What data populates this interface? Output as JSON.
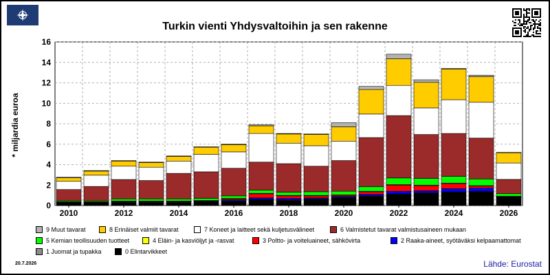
{
  "header": {
    "logo_icon": "compass-rose-icon",
    "qr_icon": "qr-code-icon"
  },
  "footer": {
    "date": "20.7.2026",
    "source": "Lähde: Eurostat"
  },
  "chart_data": {
    "type": "bar",
    "stacked": true,
    "title": "Turkin vienti Yhdysvaltoihin ja sen rakenne",
    "ylabel": "* miljardia euroa",
    "xlabel": "",
    "ylim": [
      0,
      16
    ],
    "yticks": [
      "0",
      "2",
      "4",
      "6",
      "8",
      "10",
      "12",
      "14",
      "16"
    ],
    "xtick_labels": [
      "2010",
      "2012",
      "2014",
      "2016",
      "2018",
      "2020",
      "2022",
      "2024",
      "2026"
    ],
    "grid": true,
    "legend_position": "bottom",
    "categories": [
      "2010",
      "2011",
      "2012",
      "2013",
      "2014",
      "2015",
      "2016",
      "2017",
      "2018",
      "2019",
      "2020",
      "2021",
      "2022",
      "2023",
      "2024",
      "2025",
      "2026"
    ],
    "series": [
      {
        "name": "0 Elintarvikkeet",
        "color": "#000000",
        "values": [
          0.25,
          0.25,
          0.3,
          0.3,
          0.3,
          0.35,
          0.4,
          0.55,
          0.5,
          0.6,
          0.75,
          0.9,
          1.1,
          1.2,
          1.3,
          1.35,
          0.8
        ]
      },
      {
        "name": "1 Juomat ja tupakka",
        "color": "#8c8c8c",
        "values": [
          0.05,
          0.05,
          0.05,
          0.05,
          0.05,
          0.05,
          0.05,
          0.05,
          0.05,
          0.05,
          0.05,
          0.05,
          0.05,
          0.05,
          0.05,
          0.05,
          0.02
        ]
      },
      {
        "name": "2 Raaka-aineet, syötäväksi kelpaamattomat",
        "color": "#0000ff",
        "values": [
          0.05,
          0.05,
          0.05,
          0.05,
          0.05,
          0.05,
          0.1,
          0.15,
          0.15,
          0.1,
          0.1,
          0.15,
          0.25,
          0.2,
          0.3,
          0.3,
          0.05
        ]
      },
      {
        "name": "3 Poltto- ja voiteluaineet, sähkövirta",
        "color": "#ff0000",
        "values": [
          0.0,
          0.0,
          0.0,
          0.0,
          0.0,
          0.0,
          0.1,
          0.4,
          0.25,
          0.2,
          0.1,
          0.25,
          0.6,
          0.5,
          0.5,
          0.2,
          0.02
        ]
      },
      {
        "name": "4 Eläin- ja kasviöljyt ja -rasvat",
        "color": "#ffff00",
        "values": [
          0.02,
          0.02,
          0.05,
          0.05,
          0.05,
          0.05,
          0.05,
          0.05,
          0.05,
          0.05,
          0.05,
          0.05,
          0.05,
          0.05,
          0.05,
          0.05,
          0.02
        ]
      },
      {
        "name": "5 Kemian teollisuuden tuotteet",
        "color": "#00ff00",
        "values": [
          0.1,
          0.1,
          0.2,
          0.2,
          0.2,
          0.2,
          0.25,
          0.3,
          0.3,
          0.35,
          0.35,
          0.45,
          0.65,
          0.65,
          0.65,
          0.65,
          0.25
        ]
      },
      {
        "name": "6 Valmistetut tavarat valmistusaineen mukaan",
        "color": "#9b2a2a",
        "values": [
          1.1,
          1.4,
          1.9,
          1.8,
          2.5,
          2.6,
          2.7,
          2.75,
          2.8,
          2.5,
          3.0,
          4.8,
          6.1,
          4.3,
          4.2,
          4.0,
          1.4
        ]
      },
      {
        "name": "7 Koneet ja laitteet sekä kuljetusvälineet",
        "color": "#ffffff",
        "values": [
          0.8,
          1.1,
          1.3,
          1.3,
          1.2,
          1.7,
          1.6,
          2.8,
          2.0,
          2.0,
          1.9,
          2.3,
          2.95,
          2.6,
          3.3,
          3.5,
          1.6
        ]
      },
      {
        "name": "8 Erinäiset valmiit tavarat",
        "color": "#ffcc00",
        "values": [
          0.35,
          0.4,
          0.5,
          0.45,
          0.45,
          0.7,
          0.7,
          0.75,
          0.9,
          1.1,
          1.4,
          2.4,
          2.6,
          2.5,
          3.0,
          2.5,
          1.0
        ]
      },
      {
        "name": "9 Muut tavarat",
        "color": "#b3b3b3",
        "values": [
          0.05,
          0.05,
          0.05,
          0.05,
          0.05,
          0.05,
          0.05,
          0.1,
          0.05,
          0.05,
          0.4,
          0.3,
          0.45,
          0.25,
          0.05,
          0.15,
          0.04
        ]
      }
    ],
    "legend_order": [
      9,
      8,
      7,
      6,
      5,
      4,
      3,
      2,
      1,
      0
    ]
  }
}
